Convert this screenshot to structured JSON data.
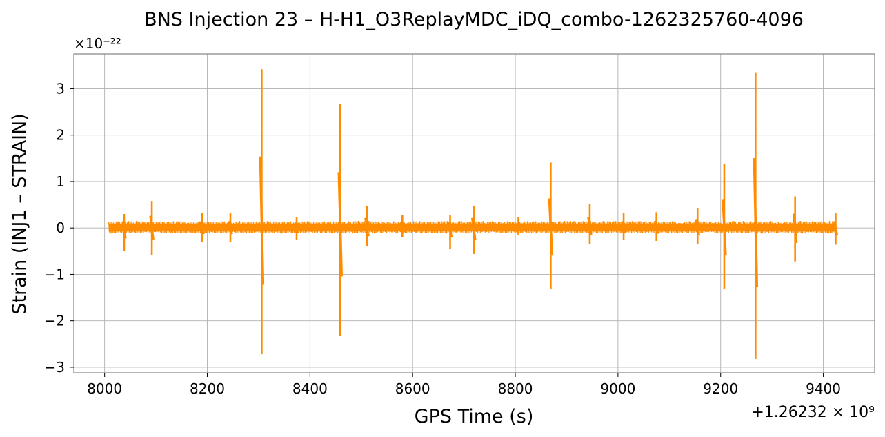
{
  "chart_data": {
    "type": "line",
    "title": "BNS Injection 23 – H-H1_O3ReplayMDC_iDQ_combo-1262325760-4096",
    "xlabel": "GPS Time (s)",
    "ylabel": "Strain (INJ1 – STRAIN)",
    "x_offset_label": "+1.26232 × 10⁹",
    "y_scale_label": "×10⁻²²",
    "xlim": [
      7940,
      9500
    ],
    "ylim": [
      -3.12,
      3.75
    ],
    "x_ticks": [
      8000,
      8200,
      8400,
      8600,
      8800,
      9000,
      9200,
      9400
    ],
    "x_tick_labels": [
      "8000",
      "8200",
      "8400",
      "8600",
      "8800",
      "9000",
      "9200",
      "9400"
    ],
    "y_ticks": [
      -3,
      -2,
      -1,
      0,
      1,
      2,
      3
    ],
    "y_tick_labels": [
      "−3",
      "−2",
      "−1",
      "0",
      "1",
      "2",
      "3"
    ],
    "grid": true,
    "line_color": "#ff8c00",
    "series": [
      {
        "x_range": [
          8008,
          9425
        ],
        "baseline_band": [
          -0.12,
          0.15
        ],
        "spikes": [
          {
            "x": 8038,
            "max": 0.3,
            "min": -0.5
          },
          {
            "x": 8092,
            "max": 0.58,
            "min": -0.58
          },
          {
            "x": 8190,
            "max": 0.32,
            "min": -0.3
          },
          {
            "x": 8245,
            "max": 0.33,
            "min": -0.3
          },
          {
            "x": 8306,
            "max": 3.42,
            "min": -2.72
          },
          {
            "x": 8374,
            "max": 0.24,
            "min": -0.25
          },
          {
            "x": 8459,
            "max": 2.67,
            "min": -2.32
          },
          {
            "x": 8511,
            "max": 0.48,
            "min": -0.4
          },
          {
            "x": 8580,
            "max": 0.28,
            "min": -0.2
          },
          {
            "x": 8673,
            "max": 0.28,
            "min": -0.46
          },
          {
            "x": 8719,
            "max": 0.48,
            "min": -0.56
          },
          {
            "x": 8806,
            "max": 0.23,
            "min": -0.15
          },
          {
            "x": 8869,
            "max": 1.41,
            "min": -1.32
          },
          {
            "x": 8945,
            "max": 0.52,
            "min": -0.35
          },
          {
            "x": 9011,
            "max": 0.32,
            "min": -0.26
          },
          {
            "x": 9075,
            "max": 0.34,
            "min": -0.28
          },
          {
            "x": 9155,
            "max": 0.42,
            "min": -0.35
          },
          {
            "x": 9207,
            "max": 1.38,
            "min": -1.32
          },
          {
            "x": 9268,
            "max": 3.34,
            "min": -2.82
          },
          {
            "x": 9345,
            "max": 0.68,
            "min": -0.72
          },
          {
            "x": 9424,
            "max": 0.32,
            "min": -0.36
          }
        ]
      }
    ]
  }
}
